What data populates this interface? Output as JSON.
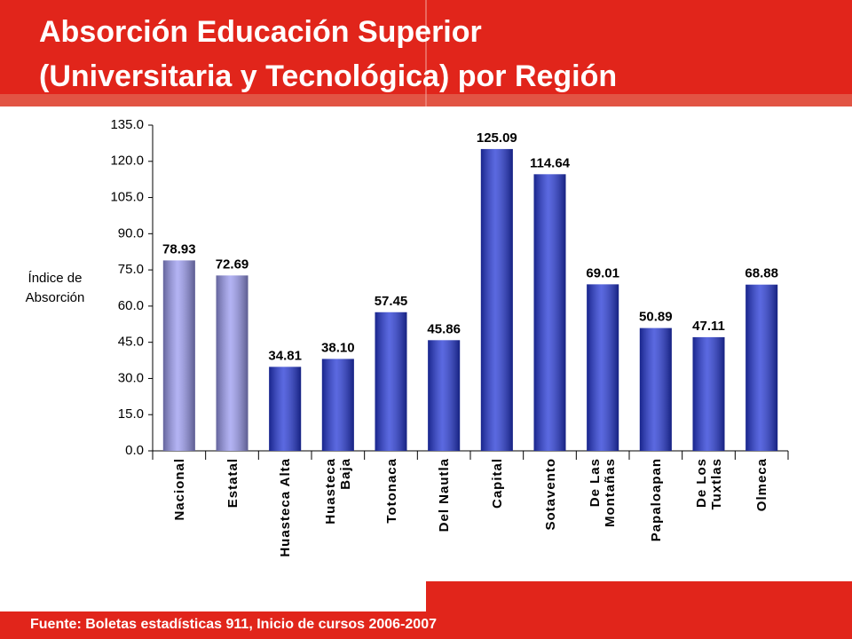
{
  "chart_data": {
    "type": "bar",
    "title": [
      "Absorción Educación Superior",
      "(Universitaria y Tecnológica) por Región"
    ],
    "y_label": [
      "Índice de",
      "Absorción"
    ],
    "source": "Fuente: Boletas estadísticas 911, Inicio de cursos 2006-2007",
    "categories": [
      "Nacional",
      "Estatal",
      "Huasteca Alta",
      "Huasteca Baja",
      "Totonaca",
      "Del Nautla",
      "Capital",
      "Sotavento",
      "De Las Montañas",
      "Papaloapan",
      "De Los Tuxtlas",
      "Olmeca"
    ],
    "values": [
      78.93,
      72.69,
      34.81,
      38.1,
      57.45,
      45.86,
      125.09,
      114.64,
      69.01,
      50.89,
      47.11,
      68.88
    ],
    "value_labels": [
      "78.93",
      "72.69",
      "34.81",
      "38.10",
      "57.45",
      "45.86",
      "125.09",
      "114.64",
      "69.01",
      "50.89",
      "47.11",
      "68.88"
    ],
    "colors": [
      "#9a9af0",
      "#9a9af0",
      "#2437d6",
      "#2437d6",
      "#2437d6",
      "#2437d6",
      "#2437d6",
      "#2437d6",
      "#2437d6",
      "#2437d6",
      "#2437d6",
      "#2437d6"
    ],
    "ylim": [
      0,
      135
    ],
    "yticks": [
      {
        "value": 0,
        "label": "0.0"
      },
      {
        "value": 15,
        "label": "15.0"
      },
      {
        "value": 30,
        "label": "30.0"
      },
      {
        "value": 45,
        "label": "45.0"
      },
      {
        "value": 60,
        "label": "60.0"
      },
      {
        "value": 75,
        "label": "75.0"
      },
      {
        "value": 90,
        "label": "90.0"
      },
      {
        "value": 105,
        "label": "105.0"
      },
      {
        "value": 120,
        "label": "120.0"
      },
      {
        "value": 135,
        "label": "135.0"
      }
    ]
  }
}
